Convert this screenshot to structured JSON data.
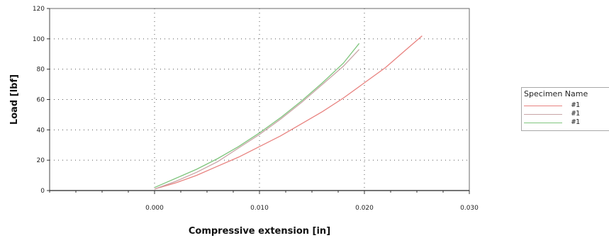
{
  "chart_data": {
    "type": "line",
    "title": "",
    "xlabel": "Compressive extension [in]",
    "ylabel": "Load [lbf]",
    "xlim": [
      -0.01,
      0.03
    ],
    "ylim": [
      0,
      120
    ],
    "x_ticks": [
      0.0,
      0.01,
      0.02,
      0.03
    ],
    "x_tick_labels": [
      "0.000",
      "0.010",
      "0.020",
      "0.030"
    ],
    "y_ticks": [
      0,
      20,
      40,
      60,
      80,
      100,
      120
    ],
    "y_tick_labels": [
      "0",
      "20",
      "40",
      "60",
      "80",
      "100",
      "120"
    ],
    "grid": true,
    "legend_title": "Specimen Name",
    "legend_position": "right",
    "series": [
      {
        "name": "#1",
        "color": "#e8827f",
        "x": [
          0.0,
          0.002,
          0.004,
          0.006,
          0.008,
          0.01,
          0.012,
          0.014,
          0.016,
          0.018,
          0.02,
          0.022,
          0.024,
          0.0255
        ],
        "y": [
          1,
          5,
          10,
          16,
          22,
          29,
          36,
          44,
          52,
          61,
          71,
          81,
          93,
          102
        ]
      },
      {
        "name": "#1",
        "color": "#c9a4a6",
        "x": [
          0.0,
          0.002,
          0.004,
          0.006,
          0.008,
          0.01,
          0.012,
          0.014,
          0.016,
          0.018,
          0.0195
        ],
        "y": [
          1,
          6,
          12,
          19,
          28,
          37,
          47,
          58,
          70,
          82,
          93
        ]
      },
      {
        "name": "#1",
        "color": "#7fc57d",
        "x": [
          0.0,
          0.002,
          0.004,
          0.006,
          0.008,
          0.01,
          0.012,
          0.014,
          0.016,
          0.018,
          0.0195
        ],
        "y": [
          2,
          8,
          14,
          21,
          29,
          38,
          48,
          59,
          71,
          84,
          97
        ]
      }
    ]
  }
}
